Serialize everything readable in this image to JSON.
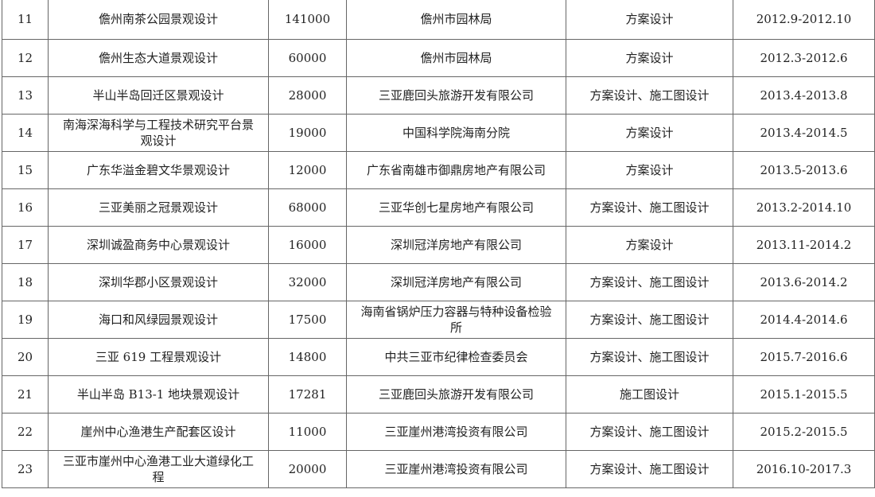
{
  "rows": [
    {
      "no": "11",
      "name": "儋州南茶公园景观设计",
      "area": "141000",
      "client": "儋州市园林局",
      "type": "方案设计",
      "period": "2012.9-2012.10"
    },
    {
      "no": "12",
      "name": "儋州生态大道景观设计",
      "area": "60000",
      "client": "儋州市园林局",
      "type": "方案设计",
      "period": "2012.3-2012.6"
    },
    {
      "no": "13",
      "name": "半山半岛回迁区景观设计",
      "area": "28000",
      "client": "三亚鹿回头旅游开发有限公司",
      "type": "方案设计、施工图设计",
      "period": "2013.4-2013.8"
    },
    {
      "no": "14",
      "name": "南海深海科学与工程技术研究平台景观设计",
      "area": "19000",
      "client": "中国科学院海南分院",
      "type": "方案设计",
      "period": "2013.4-2014.5"
    },
    {
      "no": "15",
      "name": "广东华溢金碧文华景观设计",
      "area": "12000",
      "client": "广东省南雄市御鼎房地产有限公司",
      "type": "方案设计",
      "period": "2013.5-2013.6"
    },
    {
      "no": "16",
      "name": "三亚美丽之冠景观设计",
      "area": "68000",
      "client": "三亚华创七星房地产有限公司",
      "type": "方案设计、施工图设计",
      "period": "2013.2-2014.10"
    },
    {
      "no": "17",
      "name": "深圳诚盈商务中心景观设计",
      "area": "16000",
      "client": "深圳冠洋房地产有限公司",
      "type": "方案设计",
      "period": "2013.11-2014.2"
    },
    {
      "no": "18",
      "name": "深圳华郡小区景观设计",
      "area": "32000",
      "client": "深圳冠洋房地产有限公司",
      "type": "方案设计、施工图设计",
      "period": "2013.6-2014.2"
    },
    {
      "no": "19",
      "name": "海口和风绿园景观设计",
      "area": "17500",
      "client": "海南省锅炉压力容器与特种设备检验所",
      "type": "方案设计、施工图设计",
      "period": "2014.4-2014.6"
    },
    {
      "no": "20",
      "name": "三亚 619 工程景观设计",
      "area": "14800",
      "client": "中共三亚市纪律检查委员会",
      "type": "方案设计、施工图设计",
      "period": "2015.7-2016.6"
    },
    {
      "no": "21",
      "name": "半山半岛 B13-1 地块景观设计",
      "area": "17281",
      "client": "三亚鹿回头旅游开发有限公司",
      "type": "施工图设计",
      "period": "2015.1-2015.5"
    },
    {
      "no": "22",
      "name": "崖州中心渔港生产配套区设计",
      "area": "11000",
      "client": "三亚崖州港湾投资有限公司",
      "type": "方案设计、施工图设计",
      "period": "2015.2-2015.5"
    },
    {
      "no": "23",
      "name": "三亚市崖州中心渔港工业大道绿化工程",
      "area": "20000",
      "client": "三亚崖州港湾投资有限公司",
      "type": "方案设计、施工图设计",
      "period": "2016.10-2017.3"
    }
  ]
}
